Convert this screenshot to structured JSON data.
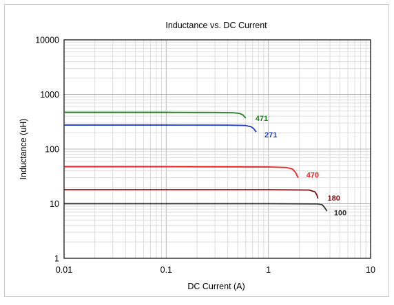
{
  "chart_data": {
    "type": "line",
    "title": "Inductance vs. DC Current",
    "xlabel": "DC Current (A)",
    "ylabel": "Inductance (uH)",
    "x_scale": "log",
    "y_scale": "log",
    "xlim": [
      0.01,
      10
    ],
    "ylim": [
      1,
      10000
    ],
    "grid": true,
    "x_ticks": [
      {
        "value": 0.01,
        "label": "0.01"
      },
      {
        "value": 0.1,
        "label": "0.1"
      },
      {
        "value": 1,
        "label": "1"
      },
      {
        "value": 10,
        "label": "10"
      }
    ],
    "y_ticks": [
      {
        "value": 1,
        "label": "1"
      },
      {
        "value": 10,
        "label": "10"
      },
      {
        "value": 100,
        "label": "100"
      },
      {
        "value": 1000,
        "label": "1000"
      },
      {
        "value": 10000,
        "label": "10000"
      }
    ],
    "series": [
      {
        "label": "471",
        "color": "#1e7f1e",
        "points": [
          [
            0.01,
            470
          ],
          [
            0.1,
            470
          ],
          [
            0.3,
            468
          ],
          [
            0.45,
            462
          ],
          [
            0.52,
            450
          ],
          [
            0.56,
            425
          ],
          [
            0.6,
            370
          ]
        ]
      },
      {
        "label": "271",
        "color": "#1f3fc4",
        "points": [
          [
            0.01,
            275
          ],
          [
            0.1,
            275
          ],
          [
            0.4,
            274
          ],
          [
            0.6,
            270
          ],
          [
            0.68,
            255
          ],
          [
            0.72,
            235
          ],
          [
            0.76,
            205
          ]
        ]
      },
      {
        "label": "470",
        "color": "#ee2222",
        "points": [
          [
            0.01,
            47.5
          ],
          [
            0.1,
            47.5
          ],
          [
            1.0,
            47
          ],
          [
            1.5,
            46
          ],
          [
            1.72,
            43
          ],
          [
            1.85,
            37
          ],
          [
            1.95,
            30
          ]
        ]
      },
      {
        "label": "180",
        "color": "#7a1010",
        "points": [
          [
            0.01,
            18
          ],
          [
            0.1,
            18
          ],
          [
            1.0,
            18
          ],
          [
            2.5,
            17.8
          ],
          [
            2.85,
            16.5
          ],
          [
            2.98,
            14.5
          ],
          [
            3.05,
            12.5
          ]
        ]
      },
      {
        "label": "100",
        "color": "#333333",
        "points": [
          [
            0.01,
            10
          ],
          [
            0.1,
            10
          ],
          [
            1.0,
            10
          ],
          [
            3.0,
            9.9
          ],
          [
            3.35,
            9.6
          ],
          [
            3.55,
            8.5
          ],
          [
            3.75,
            7.3
          ]
        ]
      }
    ]
  }
}
